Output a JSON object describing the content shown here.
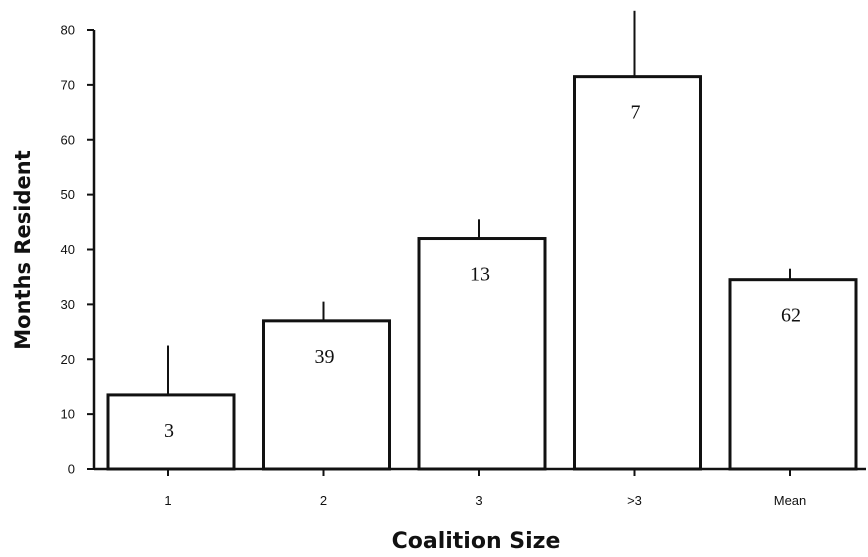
{
  "chart_data": {
    "type": "bar",
    "title": "",
    "xlabel": "Coalition Size",
    "ylabel": "Months Resident",
    "categories": [
      "1",
      "2",
      "3",
      ">3",
      "Mean"
    ],
    "values": [
      13.5,
      27,
      42,
      71.5,
      34.5
    ],
    "error_upper": [
      22.5,
      30.5,
      45.5,
      83.5,
      36.5
    ],
    "bar_labels": [
      "3",
      "39",
      "13",
      "7",
      "62"
    ],
    "ylim": [
      0,
      80
    ],
    "yticks": [
      0,
      10,
      20,
      30,
      40,
      50,
      60,
      70,
      80
    ],
    "ytick_labels": [
      "0",
      "10",
      "20",
      "30",
      "40",
      "50",
      "60",
      "70",
      "80"
    ],
    "grid": false,
    "legend": "none",
    "colors": {
      "bar_fill": "#ffffff",
      "bar_stroke": "#111111",
      "axis": "#111111",
      "text": "#111111"
    }
  }
}
